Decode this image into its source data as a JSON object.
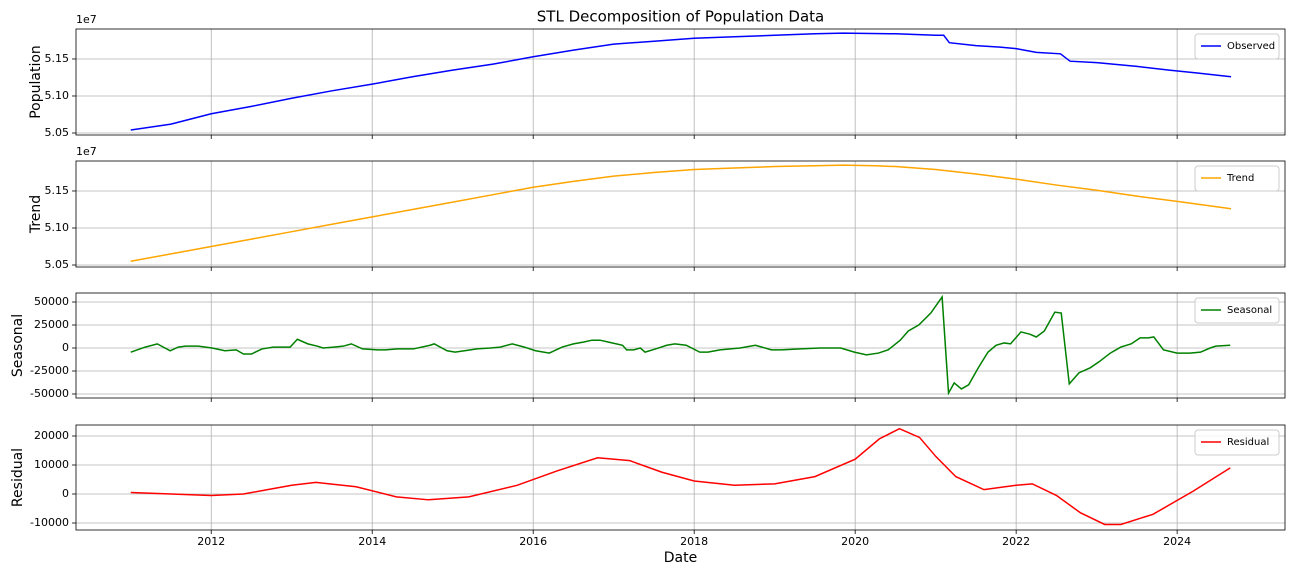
{
  "chart_data": [
    {
      "type": "line",
      "title": "STL Decomposition of Population Data",
      "ylabel": "Population",
      "y_offset_label": "1e7",
      "grid": true,
      "legend": "upper right",
      "xlim": [
        2010.32,
        2025.34
      ],
      "xticks": [
        2012,
        2014,
        2016,
        2018,
        2020,
        2022,
        2024
      ],
      "ylim": [
        5.0473,
        5.1905
      ],
      "yticks": [
        5.05,
        {
          "value": 5.1,
          "label": "5.10"
        },
        5.15
      ],
      "x": [
        2011.0,
        2011.5,
        2012.0,
        2012.5,
        2013.0,
        2013.5,
        2014.0,
        2014.5,
        2015.0,
        2015.5,
        2016.0,
        2016.5,
        2017.0,
        2017.5,
        2018.0,
        2018.5,
        2019.0,
        2019.5,
        2019.85,
        2020.5,
        2021.0,
        2021.1,
        2021.17,
        2021.5,
        2021.8,
        2022.0,
        2022.25,
        2022.55,
        2022.67,
        2023.0,
        2023.5,
        2023.9,
        2024.25,
        2024.67
      ],
      "series": [
        {
          "name": "Observed",
          "color": "#0000ff",
          "values": [
            5.054,
            5.062,
            5.076,
            5.086,
            5.097,
            5.107,
            5.116,
            5.126,
            5.135,
            5.143,
            5.153,
            5.162,
            5.17,
            5.174,
            5.178,
            5.18,
            5.182,
            5.184,
            5.185,
            5.184,
            5.182,
            5.182,
            5.172,
            5.168,
            5.166,
            5.164,
            5.159,
            5.157,
            5.147,
            5.145,
            5.14,
            5.135,
            5.131,
            5.126
          ]
        }
      ]
    },
    {
      "type": "line",
      "ylabel": "Trend",
      "y_offset_label": "1e7",
      "grid": true,
      "legend": "upper right",
      "xlim": [
        2010.32,
        2025.34
      ],
      "xticks": [
        2012,
        2014,
        2016,
        2018,
        2020,
        2022,
        2024
      ],
      "ylim": [
        5.0473,
        5.1905
      ],
      "yticks": [
        5.05,
        {
          "value": 5.1,
          "label": "5.10"
        },
        5.15
      ],
      "x": [
        2011.0,
        2011.5,
        2012.0,
        2012.5,
        2013.0,
        2013.5,
        2014.0,
        2014.5,
        2015.0,
        2015.5,
        2016.0,
        2016.5,
        2017.0,
        2017.5,
        2018.0,
        2018.5,
        2019.0,
        2019.5,
        2019.85,
        2020.25,
        2020.5,
        2021.0,
        2021.5,
        2022.0,
        2022.5,
        2023.0,
        2023.5,
        2024.0,
        2024.67
      ],
      "series": [
        {
          "name": "Trend",
          "color": "#ffa500",
          "values": [
            5.055,
            5.065,
            5.075,
            5.085,
            5.095,
            5.105,
            5.115,
            5.125,
            5.135,
            5.145,
            5.155,
            5.163,
            5.17,
            5.175,
            5.179,
            5.181,
            5.183,
            5.184,
            5.185,
            5.184,
            5.183,
            5.179,
            5.173,
            5.166,
            5.158,
            5.151,
            5.143,
            5.136,
            5.126
          ]
        }
      ]
    },
    {
      "type": "line",
      "ylabel": "Seasonal",
      "grid": true,
      "legend": "upper right",
      "xlim": [
        2010.32,
        2025.34
      ],
      "xticks": [
        2012,
        2014,
        2016,
        2018,
        2020,
        2022,
        2024
      ],
      "ylim": [
        -54350,
        59800
      ],
      "yticks": [
        -50000,
        -25000,
        0,
        25000,
        50000
      ],
      "x": [
        2011.0,
        2011.18,
        2011.33,
        2011.49,
        2011.59,
        2011.68,
        2011.84,
        2012.01,
        2012.17,
        2012.31,
        2012.4,
        2012.5,
        2012.63,
        2012.77,
        2012.98,
        2013.07,
        2013.2,
        2013.32,
        2013.39,
        2013.52,
        2013.64,
        2013.74,
        2013.88,
        2014.07,
        2014.16,
        2014.32,
        2014.51,
        2014.72,
        2014.77,
        2014.93,
        2015.03,
        2015.22,
        2015.3,
        2015.47,
        2015.59,
        2015.74,
        2015.89,
        2016.03,
        2016.2,
        2016.36,
        2016.5,
        2016.63,
        2016.73,
        2016.83,
        2016.93,
        2017.11,
        2017.16,
        2017.25,
        2017.33,
        2017.39,
        2017.52,
        2017.66,
        2017.76,
        2017.9,
        2018.07,
        2018.17,
        2018.32,
        2018.57,
        2018.76,
        2018.96,
        2019.08,
        2019.32,
        2019.57,
        2019.82,
        2019.99,
        2020.14,
        2020.29,
        2020.41,
        2020.56,
        2020.66,
        2020.79,
        2020.94,
        2021.08,
        2021.16,
        2021.23,
        2021.32,
        2021.41,
        2021.53,
        2021.65,
        2021.75,
        2021.85,
        2021.93,
        2022.06,
        2022.17,
        2022.25,
        2022.35,
        2022.48,
        2022.56,
        2022.66,
        2022.78,
        2022.92,
        2023.03,
        2023.17,
        2023.3,
        2023.43,
        2023.54,
        2023.64,
        2023.71,
        2023.83,
        2024.0,
        2024.16,
        2024.29,
        2024.41,
        2024.48,
        2024.66
      ],
      "series": [
        {
          "name": "Seasonal",
          "color": "#008000",
          "values": [
            -4500,
            1000,
            4500,
            -3000,
            1000,
            2000,
            2000,
            0,
            -3000,
            -2000,
            -6500,
            -6500,
            -1000,
            1000,
            1000,
            9500,
            4500,
            2000,
            0,
            1000,
            2000,
            4500,
            -1000,
            -2000,
            -2000,
            -1000,
            -1000,
            3000,
            4500,
            -3000,
            -4500,
            -2000,
            -1000,
            0,
            1000,
            4500,
            1000,
            -3000,
            -5500,
            1000,
            4500,
            6500,
            8500,
            8500,
            6500,
            3000,
            -2000,
            -2000,
            0,
            -4500,
            -1000,
            3000,
            4500,
            3000,
            -4500,
            -4500,
            -2000,
            0,
            3000,
            -2000,
            -2000,
            -1000,
            0,
            0,
            -4500,
            -7500,
            -5500,
            -2000,
            8500,
            18500,
            25000,
            38000,
            55500,
            -49000,
            -38000,
            -44500,
            -40000,
            -21500,
            -4500,
            3000,
            5500,
            4500,
            17500,
            15000,
            12000,
            18500,
            39000,
            38000,
            -39000,
            -27000,
            -21500,
            -15000,
            -5500,
            1000,
            4500,
            11000,
            11000,
            12000,
            -2000,
            -5500,
            -5500,
            -4500,
            0,
            2000,
            3000
          ]
        }
      ]
    },
    {
      "type": "line",
      "ylabel": "Residual",
      "xlabel": "Date",
      "grid": true,
      "legend": "upper right",
      "xlim": [
        2010.32,
        2025.34
      ],
      "xticks": [
        2012,
        2014,
        2016,
        2018,
        2020,
        2022,
        2024
      ],
      "ylim": [
        -12410,
        23790
      ],
      "yticks": [
        -10000,
        0,
        10000,
        20000
      ],
      "x": [
        2011.0,
        2011.5,
        2012.0,
        2012.4,
        2012.7,
        2013.0,
        2013.3,
        2013.8,
        2014.3,
        2014.7,
        2015.2,
        2015.8,
        2016.3,
        2016.8,
        2017.2,
        2017.6,
        2018.0,
        2018.5,
        2019.0,
        2019.5,
        2020.0,
        2020.3,
        2020.55,
        2020.8,
        2021.0,
        2021.25,
        2021.6,
        2022.0,
        2022.2,
        2022.5,
        2022.8,
        2023.1,
        2023.3,
        2023.7,
        2024.2,
        2024.66
      ],
      "series": [
        {
          "name": "Residual",
          "color": "#ff0000",
          "values": [
            500,
            0,
            -500,
            0,
            1500,
            3000,
            4000,
            2500,
            -1000,
            -2000,
            -1000,
            3000,
            8000,
            12500,
            11500,
            7500,
            4500,
            3000,
            3500,
            6000,
            12000,
            19000,
            22500,
            19500,
            13000,
            6000,
            1500,
            3000,
            3500,
            -500,
            -6500,
            -10500,
            -10500,
            -7000,
            1000,
            9000
          ]
        }
      ]
    }
  ]
}
